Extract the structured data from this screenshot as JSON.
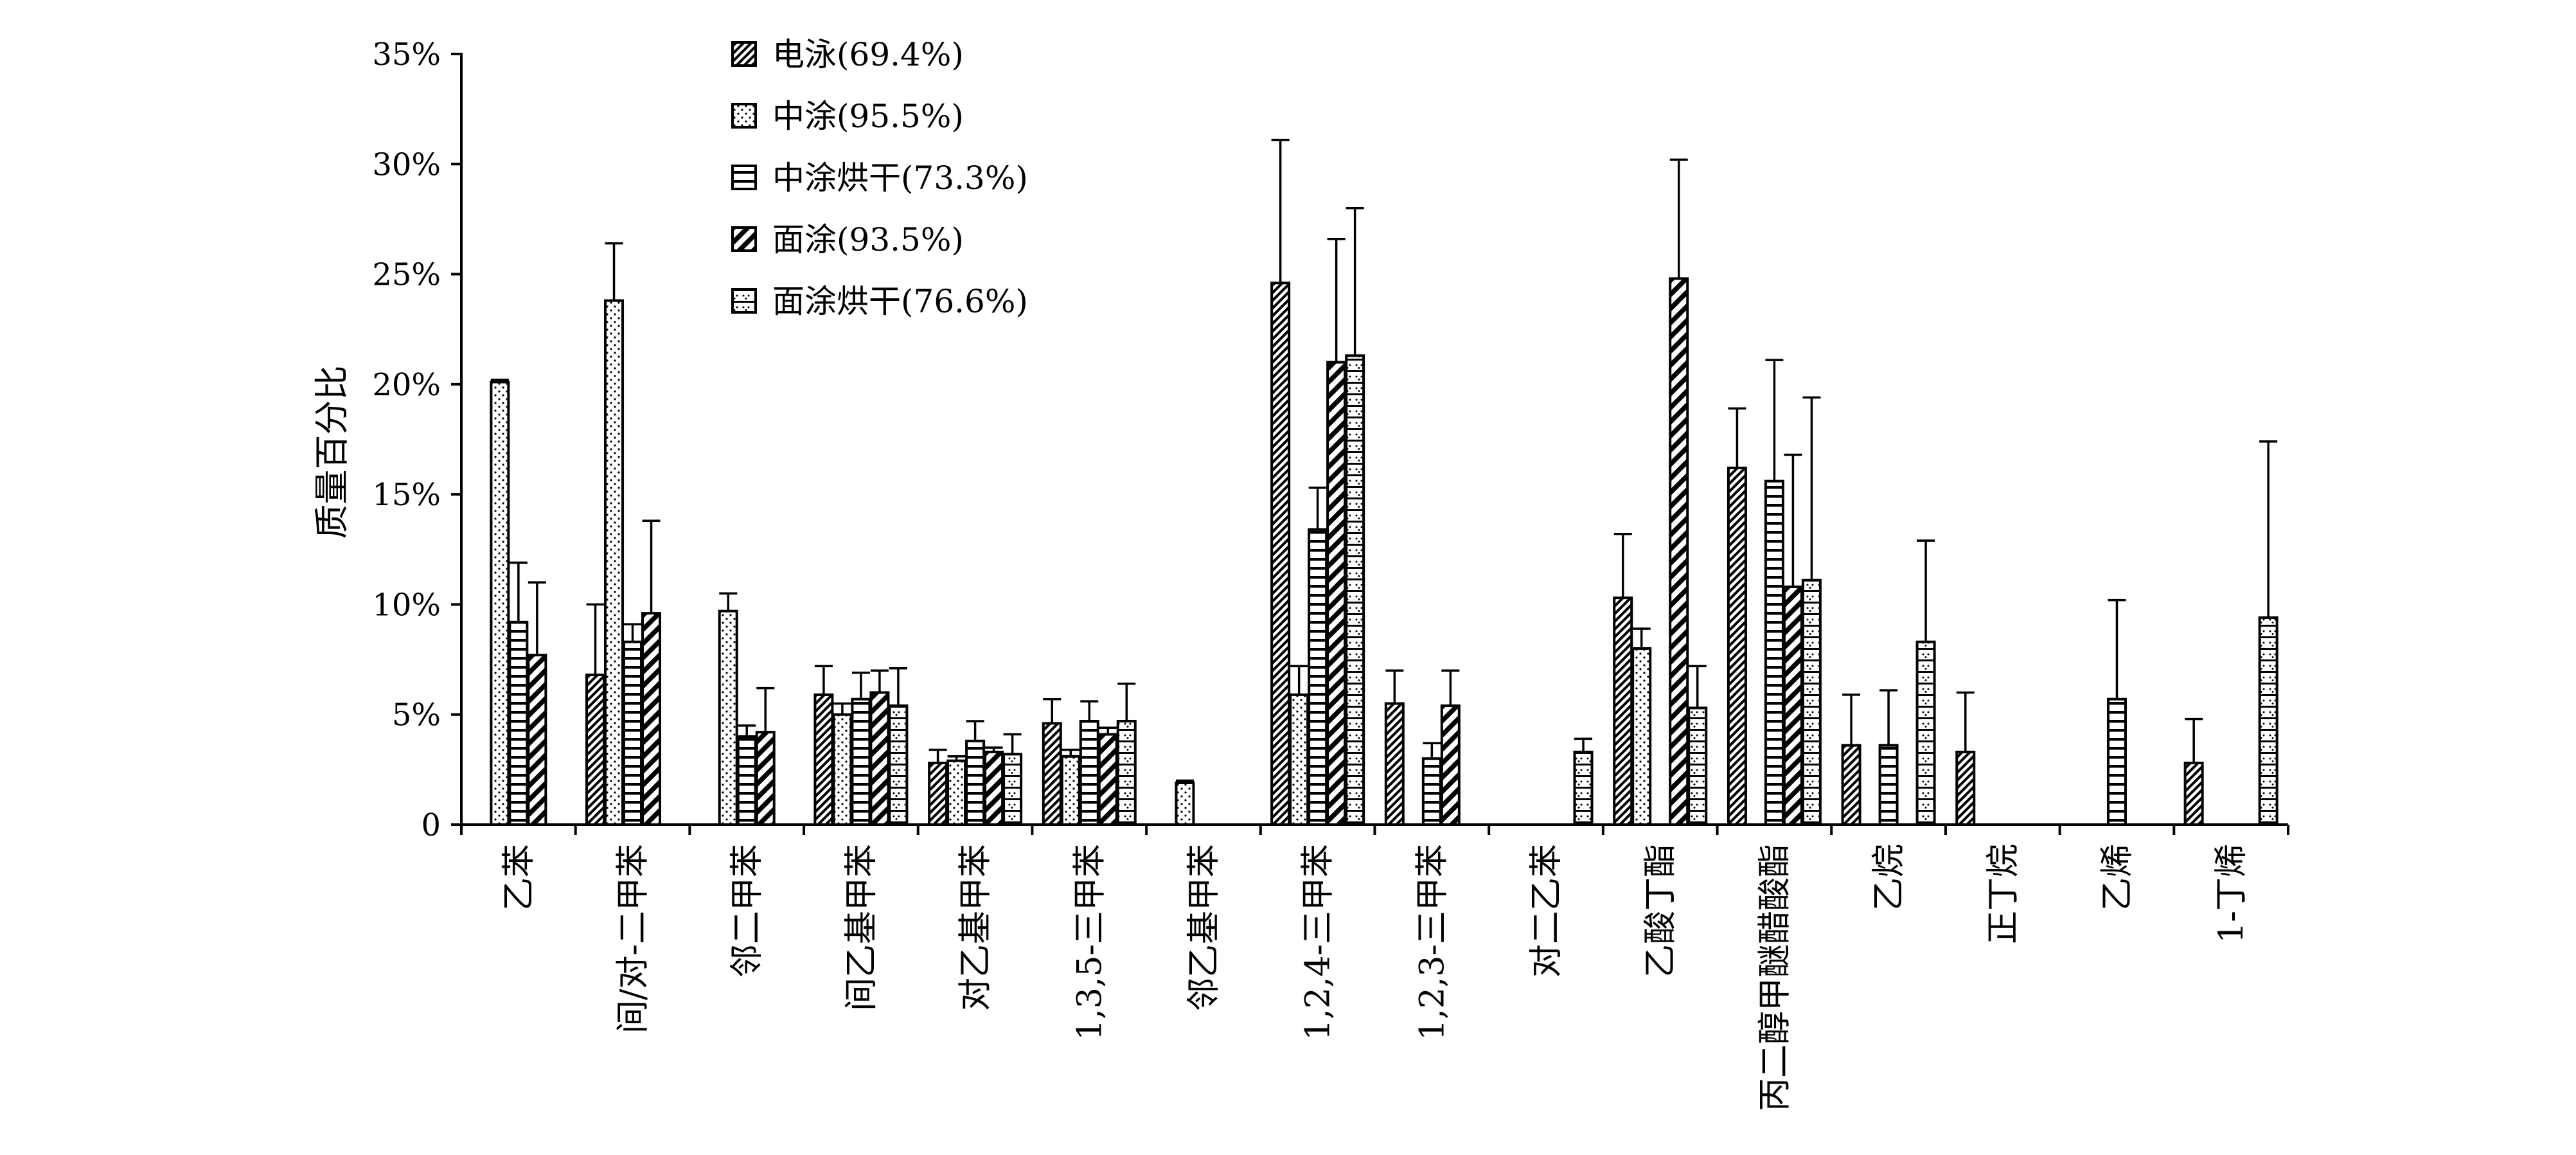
{
  "chart_data": {
    "type": "bar",
    "title": "",
    "xlabel": "",
    "ylabel": "质量百分比",
    "ylim": [
      0,
      0.35
    ],
    "yticks": [
      0,
      0.05,
      0.1,
      0.15,
      0.2,
      0.25,
      0.3,
      0.35
    ],
    "ytick_labels": [
      "0",
      "5%",
      "10%",
      "15%",
      "20%",
      "25%",
      "30%",
      "35%"
    ],
    "grid": false,
    "legend_position": "top-left",
    "categories": [
      "乙苯",
      "间/对-二甲苯",
      "邻二甲苯",
      "间乙基甲苯",
      "对乙基甲苯",
      "1,3,5-三甲苯",
      "邻乙基甲苯",
      "1,2,4-三甲苯",
      "1,2,3-三甲苯",
      "对二乙苯",
      "乙酸丁酯",
      "丙二醇甲醚醋酸酯",
      "乙烷",
      "正丁烷",
      "乙烯",
      "1-丁烯"
    ],
    "series": [
      {
        "name": "电泳(69.4%)",
        "pattern": "diag-dense",
        "values": [
          null,
          0.068,
          null,
          0.059,
          0.028,
          0.046,
          null,
          0.246,
          0.055,
          null,
          0.103,
          0.162,
          0.036,
          0.033,
          null,
          0.028
        ],
        "errors": [
          null,
          0.032,
          null,
          0.013,
          0.006,
          0.011,
          null,
          0.065,
          0.015,
          null,
          0.029,
          0.027,
          0.023,
          0.027,
          null,
          0.02
        ]
      },
      {
        "name": "中涂(95.5%)",
        "pattern": "dots",
        "values": [
          0.201,
          0.238,
          0.097,
          0.05,
          0.029,
          0.031,
          0.019,
          0.059,
          null,
          null,
          0.08,
          null,
          null,
          null,
          null,
          null
        ],
        "errors": [
          0.001,
          0.026,
          0.008,
          0.005,
          0.002,
          0.003,
          0.001,
          0.013,
          null,
          null,
          0.009,
          null,
          null,
          null,
          null,
          null
        ]
      },
      {
        "name": "中涂烘干(73.3%)",
        "pattern": "horizontal",
        "values": [
          0.092,
          0.083,
          0.04,
          0.057,
          0.038,
          0.047,
          null,
          0.134,
          0.03,
          null,
          null,
          0.156,
          0.036,
          null,
          0.057,
          null
        ],
        "errors": [
          0.027,
          0.008,
          0.005,
          0.012,
          0.009,
          0.009,
          null,
          0.019,
          0.007,
          null,
          null,
          0.055,
          0.025,
          null,
          0.045,
          null
        ]
      },
      {
        "name": "面涂(93.5%)",
        "pattern": "diag-wide",
        "values": [
          0.077,
          0.096,
          0.042,
          0.06,
          0.033,
          0.041,
          null,
          0.21,
          0.054,
          null,
          0.248,
          0.108,
          null,
          null,
          null,
          null
        ],
        "errors": [
          0.033,
          0.042,
          0.02,
          0.01,
          0.002,
          0.003,
          null,
          0.056,
          0.016,
          null,
          0.054,
          0.06,
          null,
          null,
          null,
          null
        ]
      },
      {
        "name": "面涂烘干(76.6%)",
        "pattern": "grid-check",
        "values": [
          null,
          null,
          null,
          0.054,
          0.032,
          0.047,
          null,
          0.213,
          null,
          0.033,
          0.053,
          0.111,
          0.083,
          null,
          null,
          0.094
        ],
        "errors": [
          null,
          null,
          null,
          0.017,
          0.009,
          0.017,
          null,
          0.067,
          null,
          0.006,
          0.019,
          0.083,
          0.046,
          null,
          null,
          0.08
        ]
      }
    ]
  }
}
